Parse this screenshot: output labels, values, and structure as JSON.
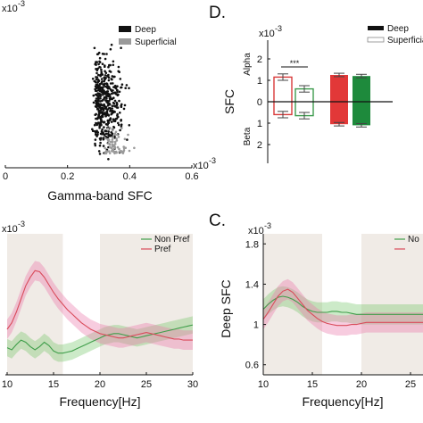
{
  "chart_data": [
    {
      "id": "scatter",
      "type": "scatter",
      "xlabel": "Gamma-band SFC",
      "x_exponent": "x10",
      "x_exponent_power": "-3",
      "y_exponent": "x10",
      "y_exponent_power": "-3",
      "x_ticks": [
        "0",
        "0.2",
        "0.4",
        "0.6"
      ],
      "xlim": [
        0,
        0.6
      ],
      "ylim": [
        0,
        1.0
      ],
      "legend": [
        "Deep",
        "Superficial"
      ],
      "legend_position": "top-right",
      "series_colors": [
        "#111111",
        "#9a9a9a"
      ]
    },
    {
      "id": "D",
      "panel_label": "D.",
      "type": "bar",
      "ylabel": "SFC",
      "y_exponent": "x10",
      "y_exponent_power": "-3",
      "y_ticks": [
        "2",
        "1",
        "0",
        "1",
        "2"
      ],
      "region_labels": [
        "Alpha",
        "Beta"
      ],
      "significance": "***",
      "legend": [
        "Deep",
        "Superficial"
      ],
      "legend_position": "top-right",
      "ylim": [
        -3,
        3
      ],
      "bars": [
        {
          "style": "superficial",
          "color": "#d83a3a",
          "alpha": 1.15,
          "beta": -0.6,
          "err": 0.15
        },
        {
          "style": "superficial",
          "color": "#3e9b4e",
          "alpha": 0.6,
          "beta": -0.65,
          "err": 0.15
        },
        {
          "style": "deep",
          "color": "#e23838",
          "alpha": 1.25,
          "beta": -1.05,
          "err": 0.08
        },
        {
          "style": "deep",
          "color": "#1e8a3c",
          "alpha": 1.2,
          "beta": -1.1,
          "err": 0.08
        }
      ]
    },
    {
      "id": "left-line",
      "type": "line",
      "xlabel": "Frequency[Hz]",
      "y_exponent": "x10",
      "y_exponent_power": "-3",
      "x_ticks": [
        "10",
        "15",
        "20",
        "25",
        "30"
      ],
      "xlim": [
        10,
        30
      ],
      "ylim": [
        0.6,
        1.9
      ],
      "shaded_ranges": [
        [
          10,
          16
        ],
        [
          20,
          30
        ]
      ],
      "legend_position": "top-right",
      "series": [
        {
          "name": "Non Pref",
          "color": "#3f9e4a",
          "x": [
            10,
            10.5,
            11,
            11.5,
            12,
            12.5,
            13,
            13.5,
            14,
            14.5,
            15,
            15.5,
            16,
            16.5,
            17,
            17.5,
            18,
            18.5,
            19,
            19.5,
            20,
            20.5,
            21,
            21.5,
            22,
            22.5,
            23,
            23.5,
            24,
            24.5,
            25,
            25.5,
            26,
            26.5,
            27,
            27.5,
            28,
            28.5,
            29,
            29.5,
            30
          ],
          "y": [
            0.85,
            0.83,
            0.88,
            0.92,
            0.9,
            0.86,
            0.83,
            0.86,
            0.9,
            0.87,
            0.82,
            0.8,
            0.8,
            0.81,
            0.82,
            0.84,
            0.86,
            0.88,
            0.9,
            0.92,
            0.94,
            0.96,
            0.97,
            0.98,
            0.98,
            0.97,
            0.96,
            0.95,
            0.94,
            0.95,
            0.96,
            0.97,
            0.98,
            0.99,
            1.0,
            1.01,
            1.02,
            1.03,
            1.04,
            1.05,
            1.06
          ],
          "band": 0.08
        },
        {
          "name": "Pref",
          "color": "#d94b5b",
          "x": [
            10,
            10.5,
            11,
            11.5,
            12,
            12.5,
            13,
            13.5,
            14,
            14.5,
            15,
            15.5,
            16,
            16.5,
            17,
            17.5,
            18,
            18.5,
            19,
            19.5,
            20,
            20.5,
            21,
            21.5,
            22,
            22.5,
            23,
            23.5,
            24,
            24.5,
            25,
            25.5,
            26,
            26.5,
            27,
            27.5,
            28,
            28.5,
            29,
            29.5,
            30
          ],
          "y": [
            1.02,
            1.08,
            1.18,
            1.3,
            1.42,
            1.5,
            1.56,
            1.55,
            1.5,
            1.43,
            1.36,
            1.3,
            1.25,
            1.2,
            1.16,
            1.12,
            1.08,
            1.05,
            1.02,
            1.0,
            0.98,
            0.97,
            0.96,
            0.95,
            0.94,
            0.94,
            0.95,
            0.96,
            0.97,
            0.98,
            0.99,
            0.98,
            0.97,
            0.96,
            0.95,
            0.94,
            0.93,
            0.93,
            0.92,
            0.92,
            0.92
          ],
          "band": 0.09
        }
      ]
    },
    {
      "id": "C",
      "panel_label": "C.",
      "type": "line",
      "xlabel": "Frequency[Hz]",
      "ylabel": "Deep SFC",
      "y_exponent": "x10",
      "y_exponent_power": "-3",
      "x_ticks": [
        "10",
        "15",
        "20",
        "25"
      ],
      "y_ticks": [
        "1.8",
        "1.4",
        "1",
        "0.6"
      ],
      "xlim": [
        10,
        30
      ],
      "ylim": [
        0.5,
        1.9
      ],
      "shaded_ranges": [
        [
          10,
          16
        ],
        [
          20,
          30
        ]
      ],
      "legend_position": "top-right",
      "series": [
        {
          "name": "Non Pref",
          "legend_text": "No",
          "color": "#3f9e4a",
          "x": [
            10,
            10.5,
            11,
            11.5,
            12,
            12.5,
            13,
            13.5,
            14,
            14.5,
            15,
            15.5,
            16,
            16.5,
            17,
            17.5,
            18,
            18.5,
            19,
            19.5,
            20,
            20.5,
            21,
            21.5,
            22,
            22.5,
            23,
            23.5,
            24,
            24.5,
            25,
            25.5,
            26,
            26.5,
            27,
            27.5,
            28,
            28.5,
            29,
            29.5,
            30
          ],
          "y": [
            1.15,
            1.2,
            1.24,
            1.27,
            1.28,
            1.27,
            1.25,
            1.22,
            1.18,
            1.15,
            1.13,
            1.12,
            1.12,
            1.12,
            1.13,
            1.13,
            1.12,
            1.12,
            1.11,
            1.1,
            1.1,
            1.1,
            1.1,
            1.1,
            1.1,
            1.1,
            1.1,
            1.1,
            1.1,
            1.1,
            1.1,
            1.1,
            1.1,
            1.1,
            1.1,
            1.1,
            1.1,
            1.1,
            1.1,
            1.1,
            1.1
          ],
          "band": 0.1
        },
        {
          "name": "Pref",
          "color": "#d94b5b",
          "x": [
            10,
            10.5,
            11,
            11.5,
            12,
            12.5,
            13,
            13.5,
            14,
            14.5,
            15,
            15.5,
            16,
            16.5,
            17,
            17.5,
            18,
            18.5,
            19,
            19.5,
            20,
            20.5,
            21,
            21.5,
            22,
            22.5,
            23,
            23.5,
            24,
            24.5,
            25,
            25.5,
            26,
            26.5,
            27,
            27.5,
            28,
            28.5,
            29,
            29.5,
            30
          ],
          "y": [
            1.05,
            1.12,
            1.2,
            1.28,
            1.33,
            1.35,
            1.32,
            1.26,
            1.2,
            1.14,
            1.1,
            1.06,
            1.03,
            1.01,
            1.0,
            0.99,
            0.99,
            0.99,
            1.0,
            1.0,
            1.01,
            1.02,
            1.02,
            1.02,
            1.02,
            1.02,
            1.02,
            1.02,
            1.02,
            1.02,
            1.02,
            1.02,
            1.02,
            1.02,
            1.02,
            1.02,
            1.02,
            1.02,
            1.02,
            1.02,
            1.02
          ],
          "band": 0.1
        }
      ]
    }
  ]
}
